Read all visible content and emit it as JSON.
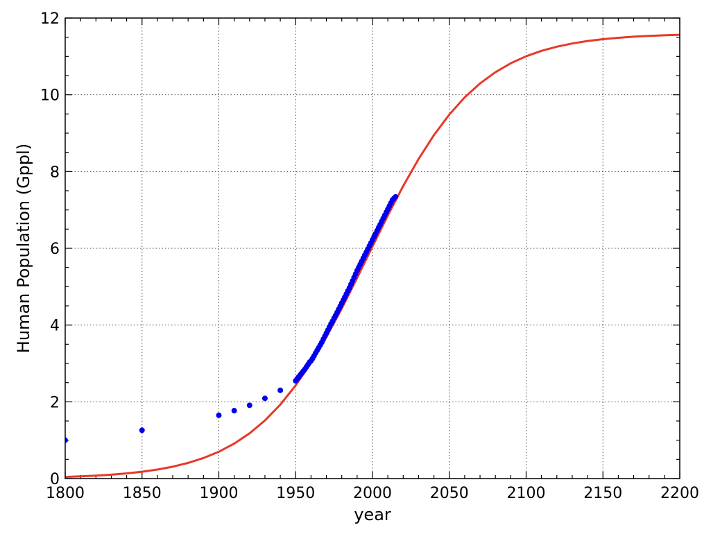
{
  "chart_data": {
    "type": "scatter",
    "xlabel": "year",
    "ylabel": "Human Population (Gppl)",
    "xlim": [
      1800,
      2200
    ],
    "ylim": [
      0,
      12
    ],
    "xticks": [
      1800,
      1850,
      1900,
      1950,
      2000,
      2050,
      2100,
      2150,
      2200
    ],
    "yticks": [
      0,
      2,
      4,
      6,
      8,
      10,
      12
    ],
    "xminorticks": [
      1810,
      1820,
      1830,
      1840,
      1860,
      1870,
      1880,
      1890,
      1910,
      1920,
      1930,
      1940,
      1960,
      1970,
      1980,
      1990,
      2010,
      2020,
      2030,
      2040,
      2060,
      2070,
      2080,
      2090,
      2110,
      2120,
      2130,
      2140,
      2160,
      2170,
      2180,
      2190
    ],
    "yminorticks": [
      0.5,
      1,
      1.5,
      2.5,
      3,
      3.5,
      4.5,
      5,
      5.5,
      6.5,
      7,
      7.5,
      8.5,
      9,
      9.5,
      10.5,
      11,
      11.5
    ],
    "grid": true,
    "series": [
      {
        "type": "line",
        "color": "#e8382a",
        "x": [
          1800,
          1810,
          1820,
          1830,
          1840,
          1850,
          1860,
          1870,
          1880,
          1890,
          1900,
          1910,
          1920,
          1930,
          1940,
          1950,
          1960,
          1970,
          1980,
          1990,
          2000,
          2010,
          2020,
          2030,
          2040,
          2050,
          2060,
          2070,
          2080,
          2090,
          2100,
          2110,
          2120,
          2130,
          2140,
          2150,
          2160,
          2170,
          2180,
          2190,
          2200
        ],
        "values": [
          0.044,
          0.058,
          0.077,
          0.102,
          0.135,
          0.178,
          0.235,
          0.31,
          0.409,
          0.536,
          0.7,
          0.911,
          1.179,
          1.514,
          1.927,
          2.427,
          3.014,
          3.686,
          4.431,
          5.228,
          6.046,
          6.856,
          7.624,
          8.327,
          8.951,
          9.485,
          9.932,
          10.296,
          10.589,
          10.822,
          11.004,
          11.145,
          11.253,
          11.337,
          11.401,
          11.449,
          11.486,
          11.514,
          11.535,
          11.551,
          11.563
        ]
      },
      {
        "type": "scatter",
        "color": "#0000ee",
        "x": [
          1800,
          1850,
          1900,
          1910,
          1920,
          1930,
          1940,
          1950,
          1951,
          1952,
          1953,
          1954,
          1955,
          1956,
          1957,
          1958,
          1959,
          1960,
          1961,
          1962,
          1963,
          1964,
          1965,
          1966,
          1967,
          1968,
          1969,
          1970,
          1971,
          1972,
          1973,
          1974,
          1975,
          1976,
          1977,
          1978,
          1979,
          1980,
          1981,
          1982,
          1983,
          1984,
          1985,
          1986,
          1987,
          1988,
          1989,
          1990,
          1991,
          1992,
          1993,
          1994,
          1995,
          1996,
          1997,
          1998,
          1999,
          2000,
          2001,
          2002,
          2003,
          2004,
          2005,
          2006,
          2007,
          2008,
          2009,
          2010,
          2011,
          2012,
          2013,
          2014,
          2015
        ],
        "values": [
          1.0,
          1.26,
          1.65,
          1.77,
          1.91,
          2.09,
          2.3,
          2.55,
          2.6,
          2.65,
          2.7,
          2.75,
          2.8,
          2.85,
          2.91,
          2.97,
          3.03,
          3.07,
          3.13,
          3.2,
          3.27,
          3.34,
          3.41,
          3.48,
          3.55,
          3.63,
          3.71,
          3.79,
          3.87,
          3.95,
          4.03,
          4.1,
          4.18,
          4.25,
          4.33,
          4.41,
          4.49,
          4.57,
          4.65,
          4.73,
          4.81,
          4.89,
          4.97,
          5.06,
          5.15,
          5.24,
          5.33,
          5.42,
          5.5,
          5.58,
          5.66,
          5.74,
          5.82,
          5.9,
          5.98,
          6.06,
          6.14,
          6.22,
          6.3,
          6.38,
          6.46,
          6.54,
          6.62,
          6.7,
          6.78,
          6.86,
          6.94,
          7.02,
          7.1,
          7.18,
          7.26,
          7.3,
          7.34
        ]
      }
    ]
  }
}
